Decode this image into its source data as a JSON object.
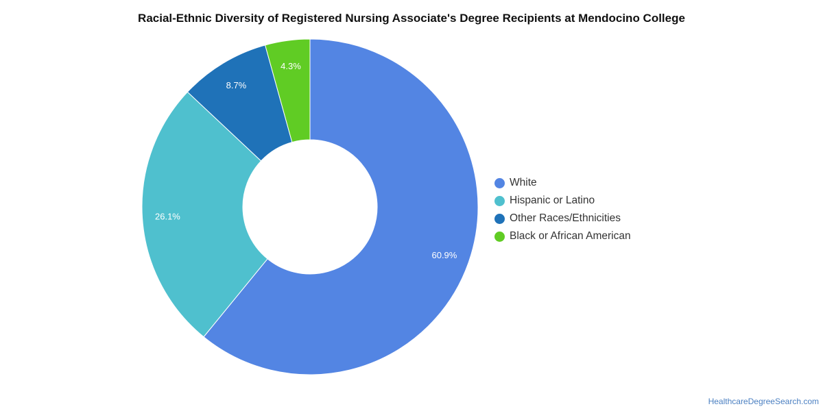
{
  "chart_data": {
    "type": "pie",
    "title": "Racial-Ethnic Diversity of Registered Nursing Associate's Degree Recipients at Mendocino College",
    "categories": [
      "White",
      "Hispanic or Latino",
      "Other Races/Ethnicities",
      "Black or African American"
    ],
    "values": [
      60.9,
      26.1,
      8.7,
      4.3
    ],
    "value_labels": [
      "60.9%",
      "26.1%",
      "8.7%",
      "4.3%"
    ],
    "colors": [
      "#5385e3",
      "#4fc0ce",
      "#1f72b8",
      "#60cc24"
    ],
    "donut": true,
    "legend_position": "right"
  },
  "credit": "HealthcareDegreeSearch.com"
}
